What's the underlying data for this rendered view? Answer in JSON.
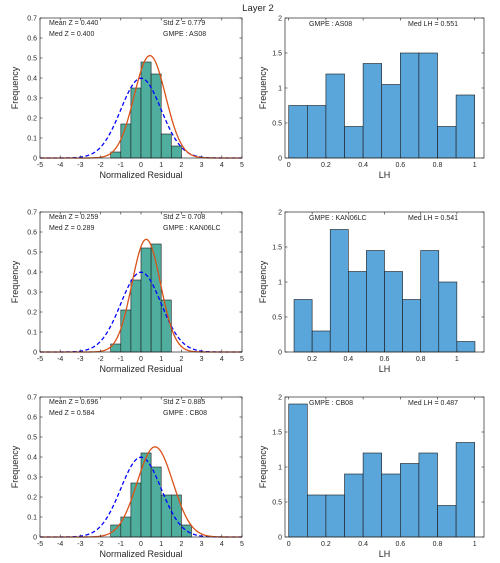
{
  "figure_title": "Layer 2",
  "colors": {
    "hist_left": "#4fae9e",
    "hist_right": "#5aa5d9",
    "normal_curve": "#0000ff",
    "fit_curve": "#d95319",
    "axis": "#262626"
  },
  "chart_data": [
    {
      "type": "bar",
      "panel": "residual",
      "row": 0,
      "xlabel": "Normalized Residual",
      "ylabel": "Frequency",
      "xlim": [
        -5,
        5
      ],
      "ylim": [
        0,
        0.7
      ],
      "xticks": [
        -5,
        -4,
        -3,
        -2,
        -1,
        0,
        1,
        2,
        3,
        4,
        5
      ],
      "yticks": [
        0,
        0.1,
        0.2,
        0.3,
        0.4,
        0.5,
        0.6,
        0.7
      ],
      "bin_edges": [
        -1.5,
        -1.0,
        -0.5,
        0.0,
        0.5,
        1.0,
        1.5,
        2.0
      ],
      "values": [
        0.03,
        0.17,
        0.35,
        0.48,
        0.42,
        0.12,
        0.06
      ],
      "annotations": {
        "mean": "Mean Z = 0.440",
        "med": "Med Z = 0.400",
        "std": "Std Z = 0.779",
        "gmpe": "GMPE : AS08"
      },
      "standard_normal": {
        "mean": 0,
        "std": 1
      },
      "fitted_normal": {
        "mean": 0.44,
        "std": 0.779
      }
    },
    {
      "type": "bar",
      "panel": "lh",
      "row": 0,
      "xlabel": "LH",
      "ylabel": "Frequency",
      "xlim": [
        -0.02,
        1.05
      ],
      "ylim": [
        0,
        2
      ],
      "xticks": [
        0,
        0.2,
        0.4,
        0.6,
        0.8,
        1
      ],
      "yticks": [
        0,
        0.5,
        1,
        1.5,
        2
      ],
      "bin_edges": [
        0,
        0.1,
        0.2,
        0.3,
        0.4,
        0.5,
        0.6,
        0.7,
        0.8,
        0.9,
        1.0
      ],
      "values": [
        0.75,
        0.75,
        1.2,
        0.45,
        1.35,
        1.05,
        1.5,
        1.5,
        0.45,
        0.9
      ],
      "annotations": {
        "gmpe": "GMPE : AS08",
        "med": "Med LH = 0.551"
      }
    },
    {
      "type": "bar",
      "panel": "residual",
      "row": 1,
      "xlabel": "Normalized Residual",
      "ylabel": "Frequency",
      "xlim": [
        -5,
        5
      ],
      "ylim": [
        0,
        0.7
      ],
      "xticks": [
        -5,
        -4,
        -3,
        -2,
        -1,
        0,
        1,
        2,
        3,
        4,
        5
      ],
      "yticks": [
        0,
        0.1,
        0.2,
        0.3,
        0.4,
        0.5,
        0.6,
        0.7
      ],
      "bin_edges": [
        -1.5,
        -1.0,
        -0.5,
        0.0,
        0.5,
        1.0,
        1.5
      ],
      "values": [
        0.04,
        0.21,
        0.36,
        0.52,
        0.54,
        0.26
      ],
      "annotations": {
        "mean": "Mean Z = 0.259",
        "med": "Med Z = 0.289",
        "std": "Std Z = 0.708",
        "gmpe": "GMPE : KAN06LC"
      },
      "standard_normal": {
        "mean": 0,
        "std": 1
      },
      "fitted_normal": {
        "mean": 0.259,
        "std": 0.708
      }
    },
    {
      "type": "bar",
      "panel": "lh",
      "row": 1,
      "xlabel": "LH",
      "ylabel": "Frequency",
      "xlim": [
        0.05,
        1.15
      ],
      "ylim": [
        0,
        2
      ],
      "xticks": [
        0.2,
        0.4,
        0.6,
        0.8,
        1
      ],
      "yticks": [
        0,
        0.5,
        1,
        1.5,
        2
      ],
      "bin_edges": [
        0.1,
        0.2,
        0.3,
        0.4,
        0.5,
        0.6,
        0.7,
        0.8,
        0.9,
        1.0,
        1.1
      ],
      "values": [
        0.75,
        0.3,
        1.75,
        1.15,
        1.45,
        1.15,
        0.75,
        1.45,
        1.0,
        0.15
      ],
      "annotations": {
        "gmpe": "GMPE : KAN06LC",
        "med": "Med LH = 0.541"
      }
    },
    {
      "type": "bar",
      "panel": "residual",
      "row": 2,
      "xlabel": "Normalized Residual",
      "ylabel": "Frequency",
      "xlim": [
        -5,
        5
      ],
      "ylim": [
        0,
        0.7
      ],
      "xticks": [
        -5,
        -4,
        -3,
        -2,
        -1,
        0,
        1,
        2,
        3,
        4,
        5
      ],
      "yticks": [
        0,
        0.1,
        0.2,
        0.3,
        0.4,
        0.5,
        0.6,
        0.7
      ],
      "bin_edges": [
        -1.5,
        -1.0,
        -0.5,
        0.0,
        0.5,
        1.0,
        1.5,
        2.0,
        2.5
      ],
      "values": [
        0.06,
        0.1,
        0.27,
        0.42,
        0.35,
        0.21,
        0.21,
        0.06
      ],
      "annotations": {
        "mean": "Mean Z = 0.696",
        "med": "Med Z = 0.584",
        "std": "Std Z = 0.885",
        "gmpe": "GMPE : CB08"
      },
      "standard_normal": {
        "mean": 0,
        "std": 1
      },
      "fitted_normal": {
        "mean": 0.696,
        "std": 0.885
      }
    },
    {
      "type": "bar",
      "panel": "lh",
      "row": 2,
      "xlabel": "LH",
      "ylabel": "Frequency",
      "xlim": [
        -0.02,
        1.05
      ],
      "ylim": [
        0,
        2
      ],
      "xticks": [
        0,
        0.2,
        0.4,
        0.6,
        0.8,
        1
      ],
      "yticks": [
        0,
        0.5,
        1,
        1.5,
        2
      ],
      "bin_edges": [
        0,
        0.1,
        0.2,
        0.3,
        0.4,
        0.5,
        0.6,
        0.7,
        0.8,
        0.9,
        1.0
      ],
      "values": [
        1.9,
        0.6,
        0.6,
        0.9,
        1.2,
        0.9,
        1.05,
        1.2,
        0.45,
        1.35
      ],
      "annotations": {
        "gmpe": "GMPE : CB08",
        "med": "Med LH = 0.487"
      }
    }
  ]
}
